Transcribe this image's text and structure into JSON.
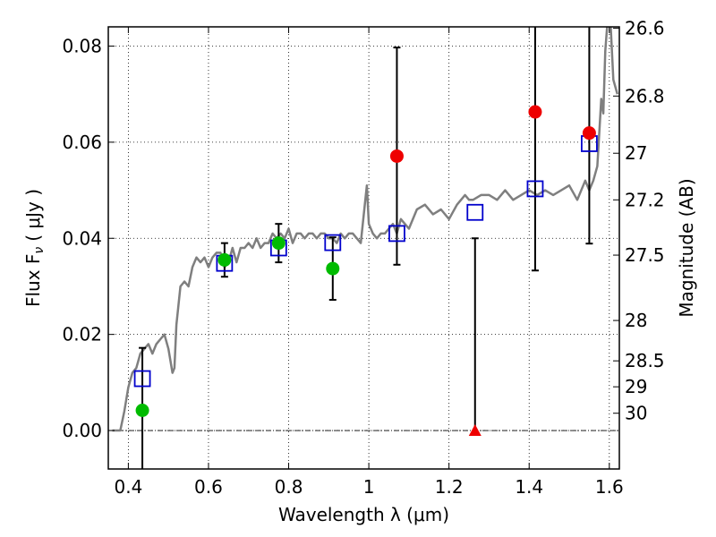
{
  "chart_data": {
    "type": "scatter",
    "xlabel": "Wavelength  λ (μm)",
    "ylabel": "Flux  F",
    "ylabel_sub": "ν",
    "ylabel_unit": "( μJy )",
    "ylabel_right": "Magnitude (AB)",
    "xlim": [
      0.35,
      1.625
    ],
    "ylim": [
      -0.008,
      0.084
    ],
    "grid": true,
    "x_ticks": [
      {
        "value": 0.4,
        "label": "0.4"
      },
      {
        "value": 0.6,
        "label": "0.6"
      },
      {
        "value": 0.8,
        "label": "0.8"
      },
      {
        "value": 1.0,
        "label": "1"
      },
      {
        "value": 1.2,
        "label": "1.2"
      },
      {
        "value": 1.4,
        "label": "1.4"
      },
      {
        "value": 1.6,
        "label": "1.6"
      }
    ],
    "y_ticks": [
      {
        "value": 0.0,
        "label": "0.00"
      },
      {
        "value": 0.02,
        "label": "0.02"
      },
      {
        "value": 0.04,
        "label": "0.04"
      },
      {
        "value": 0.06,
        "label": "0.06"
      },
      {
        "value": 0.08,
        "label": "0.08"
      }
    ],
    "right_ticks": [
      {
        "flux": 0.0837,
        "label": "26.6"
      },
      {
        "flux": 0.0696,
        "label": "26.8"
      },
      {
        "flux": 0.0577,
        "label": "27"
      },
      {
        "flux": 0.048,
        "label": "27.2"
      },
      {
        "flux": 0.0365,
        "label": "27.5"
      },
      {
        "flux": 0.0229,
        "label": "28"
      },
      {
        "flux": 0.0145,
        "label": "28.5"
      },
      {
        "flux": 0.0091,
        "label": "29"
      },
      {
        "flux": 0.0036,
        "label": "30"
      }
    ],
    "colors": {
      "model": "#7f7f7f",
      "model_points": "#0000cc",
      "detected": "#00bb00",
      "low_sn": "#ee0000",
      "upper_limit": "#ee0000",
      "errorbar": "#000000"
    },
    "model_spectrum": {
      "x": [
        0.36,
        0.38,
        0.39,
        0.4,
        0.41,
        0.42,
        0.43,
        0.44,
        0.45,
        0.46,
        0.47,
        0.48,
        0.49,
        0.5,
        0.51,
        0.515,
        0.52,
        0.53,
        0.54,
        0.55,
        0.56,
        0.57,
        0.58,
        0.59,
        0.6,
        0.61,
        0.62,
        0.63,
        0.64,
        0.65,
        0.66,
        0.67,
        0.68,
        0.69,
        0.7,
        0.71,
        0.72,
        0.73,
        0.74,
        0.75,
        0.76,
        0.77,
        0.78,
        0.79,
        0.8,
        0.81,
        0.82,
        0.83,
        0.84,
        0.85,
        0.86,
        0.87,
        0.88,
        0.89,
        0.9,
        0.91,
        0.92,
        0.93,
        0.94,
        0.95,
        0.96,
        0.97,
        0.98,
        0.99,
        0.995,
        1.0,
        1.01,
        1.02,
        1.03,
        1.04,
        1.05,
        1.06,
        1.07,
        1.08,
        1.09,
        1.1,
        1.12,
        1.14,
        1.16,
        1.18,
        1.2,
        1.22,
        1.24,
        1.25,
        1.26,
        1.28,
        1.3,
        1.32,
        1.34,
        1.36,
        1.38,
        1.4,
        1.42,
        1.44,
        1.46,
        1.48,
        1.5,
        1.52,
        1.54,
        1.55,
        1.56,
        1.57,
        1.58,
        1.585,
        1.59,
        1.6,
        1.61,
        1.62
      ],
      "y": [
        0.0,
        0.0,
        0.004,
        0.009,
        0.012,
        0.013,
        0.016,
        0.017,
        0.018,
        0.016,
        0.018,
        0.019,
        0.02,
        0.017,
        0.012,
        0.013,
        0.022,
        0.03,
        0.031,
        0.03,
        0.034,
        0.036,
        0.035,
        0.036,
        0.034,
        0.036,
        0.037,
        0.037,
        0.034,
        0.035,
        0.038,
        0.035,
        0.038,
        0.038,
        0.039,
        0.038,
        0.04,
        0.038,
        0.039,
        0.039,
        0.041,
        0.04,
        0.041,
        0.04,
        0.042,
        0.039,
        0.041,
        0.041,
        0.04,
        0.041,
        0.041,
        0.04,
        0.041,
        0.041,
        0.04,
        0.04,
        0.039,
        0.041,
        0.04,
        0.041,
        0.041,
        0.04,
        0.039,
        0.047,
        0.051,
        0.043,
        0.041,
        0.04,
        0.041,
        0.041,
        0.042,
        0.043,
        0.041,
        0.044,
        0.043,
        0.042,
        0.046,
        0.047,
        0.045,
        0.046,
        0.044,
        0.047,
        0.049,
        0.048,
        0.048,
        0.049,
        0.049,
        0.048,
        0.05,
        0.048,
        0.049,
        0.05,
        0.049,
        0.05,
        0.049,
        0.05,
        0.051,
        0.048,
        0.052,
        0.05,
        0.052,
        0.055,
        0.069,
        0.066,
        0.079,
        0.09,
        0.073,
        0.07
      ]
    },
    "model_points": {
      "x": [
        0.435,
        0.64,
        0.775,
        0.91,
        1.07,
        1.265,
        1.415,
        1.55
      ],
      "y": [
        0.0108,
        0.0348,
        0.038,
        0.0391,
        0.041,
        0.0454,
        0.0503,
        0.0597
      ]
    },
    "observed": [
      {
        "x": 0.435,
        "y": 0.0042,
        "err": 0.013,
        "class": "detected"
      },
      {
        "x": 0.64,
        "y": 0.0355,
        "err": 0.0035,
        "class": "detected"
      },
      {
        "x": 0.775,
        "y": 0.039,
        "err": 0.004,
        "class": "detected"
      },
      {
        "x": 0.91,
        "y": 0.0337,
        "err": 0.0065,
        "class": "detected"
      },
      {
        "x": 1.07,
        "y": 0.0571,
        "err": 0.0226,
        "class": "low_sn"
      },
      {
        "x": 1.415,
        "y": 0.0663,
        "err": 0.033,
        "class": "low_sn"
      },
      {
        "x": 1.55,
        "y": 0.0619,
        "err": 0.023,
        "class": "low_sn"
      }
    ],
    "upper_limit": {
      "x": 1.265,
      "y": 0.0,
      "upper": 0.04
    }
  }
}
